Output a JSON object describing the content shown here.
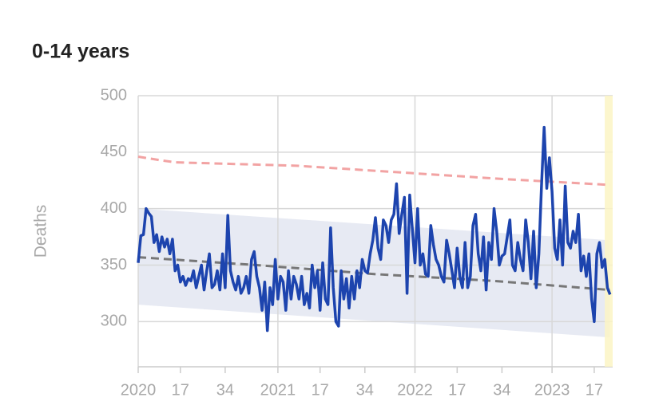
{
  "chart_data": {
    "type": "line",
    "title": "0-14 years",
    "y_label": "Deaths",
    "ylim": [
      260,
      500
    ],
    "yticks": [
      300,
      350,
      400,
      450,
      500
    ],
    "xlim": [
      0,
      180
    ],
    "xticks": [
      {
        "value": 0,
        "label": "2020"
      },
      {
        "value": 16,
        "label": "17"
      },
      {
        "value": 33,
        "label": "34"
      },
      {
        "value": 53,
        "label": "2021"
      },
      {
        "value": 69,
        "label": "17"
      },
      {
        "value": 86,
        "label": "34"
      },
      {
        "value": 105,
        "label": "2022"
      },
      {
        "value": 121,
        "label": "17"
      },
      {
        "value": 138,
        "label": "34"
      },
      {
        "value": 157,
        "label": "2023"
      },
      {
        "value": 173,
        "label": "17"
      }
    ],
    "xgrid": [
      0,
      53,
      105,
      157
    ],
    "grid": true,
    "highlight_x": [
      177,
      180
    ],
    "highlight_color": "#fbf5c4",
    "band": {
      "color": "#e7eaf3",
      "x": [
        0,
        179
      ],
      "lower": [
        315,
        286
      ],
      "upper": [
        400,
        372
      ]
    },
    "series": [
      {
        "style": "dashed",
        "color": "#f2a3a3",
        "x": [
          0,
          8,
          14,
          60,
          100,
          140,
          179
        ],
        "values": [
          446,
          443,
          441,
          438,
          432,
          426,
          421
        ]
      },
      {
        "style": "dashed",
        "color": "#777777",
        "x": [
          0,
          45,
          90,
          135,
          179
        ],
        "values": [
          357,
          350,
          342,
          336,
          328
        ]
      },
      {
        "style": "solid",
        "color": "#1d44ae",
        "values": [
          352,
          376,
          377,
          400,
          396,
          393,
          370,
          377,
          362,
          375,
          366,
          373,
          360,
          373,
          345,
          350,
          335,
          340,
          332,
          338,
          336,
          345,
          330,
          340,
          350,
          328,
          345,
          360,
          330,
          333,
          345,
          328,
          360,
          330,
          394,
          345,
          335,
          328,
          340,
          325,
          330,
          340,
          325,
          355,
          362,
          340,
          330,
          310,
          335,
          292,
          330,
          315,
          355,
          320,
          340,
          335,
          310,
          345,
          320,
          340,
          333,
          320,
          340,
          315,
          325,
          312,
          350,
          330,
          345,
          310,
          352,
          320,
          315,
          383,
          330,
          300,
          296,
          345,
          320,
          338,
          312,
          340,
          320,
          345,
          330,
          355,
          345,
          343,
          360,
          372,
          392,
          365,
          355,
          390,
          385,
          370,
          390,
          395,
          422,
          378,
          395,
          410,
          325,
          412,
          382,
          352,
          400,
          350,
          360,
          342,
          340,
          385,
          368,
          355,
          350,
          340,
          335,
          372,
          360,
          345,
          330,
          365,
          340,
          330,
          370,
          330,
          340,
          385,
          395,
          360,
          345,
          375,
          328,
          370,
          355,
          400,
          380,
          350,
          358,
          360,
          375,
          390,
          350,
          345,
          370,
          355,
          345,
          390,
          370,
          338,
          380,
          330,
          360,
          420,
          472,
          418,
          445,
          415,
          365,
          355,
          390,
          350,
          420,
          370,
          365,
          380,
          370,
          395,
          345,
          358,
          340,
          360,
          320,
          300,
          360,
          370,
          348,
          355,
          330,
          324
        ]
      }
    ]
  }
}
